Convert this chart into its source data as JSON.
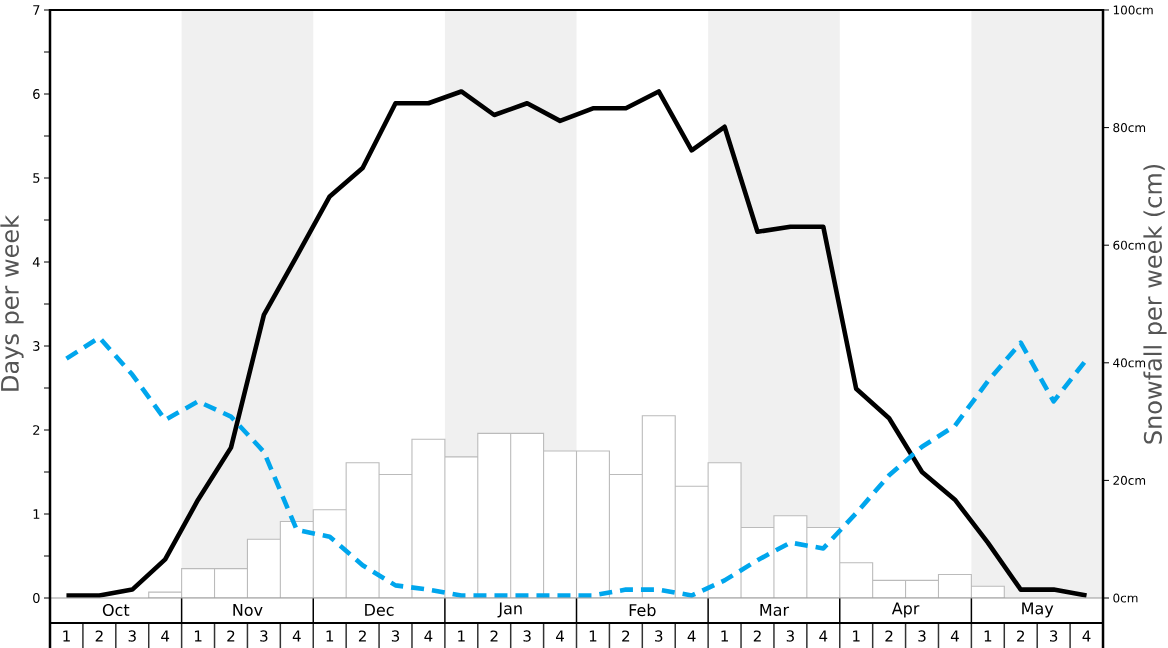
{
  "chart_data": {
    "type": "bar",
    "categories": [
      "1",
      "2",
      "3",
      "4",
      "1",
      "2",
      "3",
      "4",
      "1",
      "2",
      "3",
      "4",
      "1",
      "2",
      "3",
      "4",
      "1",
      "2",
      "3",
      "4",
      "1",
      "2",
      "3",
      "4",
      "1",
      "2",
      "3",
      "4",
      "1",
      "2",
      "3",
      "4"
    ],
    "annotations": [
      "Oct",
      "Nov",
      "Dec",
      "Jan",
      "Feb",
      "Mar",
      "Apr",
      "May"
    ],
    "ylabel": "Days per week",
    "y2label": "Snowfall per week (cm)",
    "ylim": [
      0,
      7
    ],
    "yticks": [
      0,
      {
        "value": 0.5,
        "label": null
      },
      1,
      {
        "value": 1.5,
        "label": null
      },
      2,
      {
        "value": 2.5,
        "label": null
      },
      3,
      {
        "value": 3.5,
        "label": null
      },
      4,
      {
        "value": 4.5,
        "label": null
      },
      5,
      {
        "value": 5.5,
        "label": null
      },
      6,
      {
        "value": 6.5,
        "label": null
      },
      7
    ],
    "y2lim": [
      0,
      100
    ],
    "y2ticks": [
      {
        "value": 0,
        "label": "0cm"
      },
      {
        "value": 20,
        "label": "20cm"
      },
      {
        "value": 40,
        "label": "40cm"
      },
      {
        "value": 60,
        "label": "60cm"
      },
      {
        "value": 80,
        "label": "80cm"
      },
      {
        "value": 100,
        "label": "100cm"
      }
    ],
    "series": [
      {
        "axis": "y2",
        "color": "#ffffff",
        "values": [
          0,
          0,
          0,
          1,
          5,
          5,
          10,
          13,
          15,
          23,
          21,
          27,
          24,
          28,
          28,
          25,
          25,
          21,
          31,
          19,
          23,
          12,
          14,
          12,
          6,
          3,
          3,
          4,
          2,
          0,
          0,
          0
        ]
      },
      {
        "type": "line",
        "color": "#000000",
        "line_style": "solid",
        "values": [
          0.03,
          0.03,
          0.1,
          0.46,
          1.17,
          1.79,
          3.37,
          4.07,
          4.78,
          5.12,
          5.89,
          5.89,
          6.03,
          5.75,
          5.89,
          5.68,
          5.83,
          5.83,
          6.03,
          5.33,
          5.61,
          4.36,
          4.42,
          4.42,
          2.49,
          2.14,
          1.5,
          1.17,
          0.66,
          0.1,
          0.1,
          0.03
        ]
      },
      {
        "type": "line",
        "color": "#00a6ed",
        "line_style": "dashed",
        "values": [
          2.85,
          3.1,
          2.66,
          2.12,
          2.34,
          2.16,
          1.74,
          0.81,
          0.73,
          0.39,
          0.15,
          0.1,
          0.03,
          0.03,
          0.03,
          0.03,
          0.03,
          0.1,
          0.1,
          0.03,
          0.21,
          0.45,
          0.66,
          0.59,
          1.01,
          1.46,
          1.8,
          2.05,
          2.58,
          3.04,
          2.34,
          2.84
        ]
      }
    ]
  }
}
